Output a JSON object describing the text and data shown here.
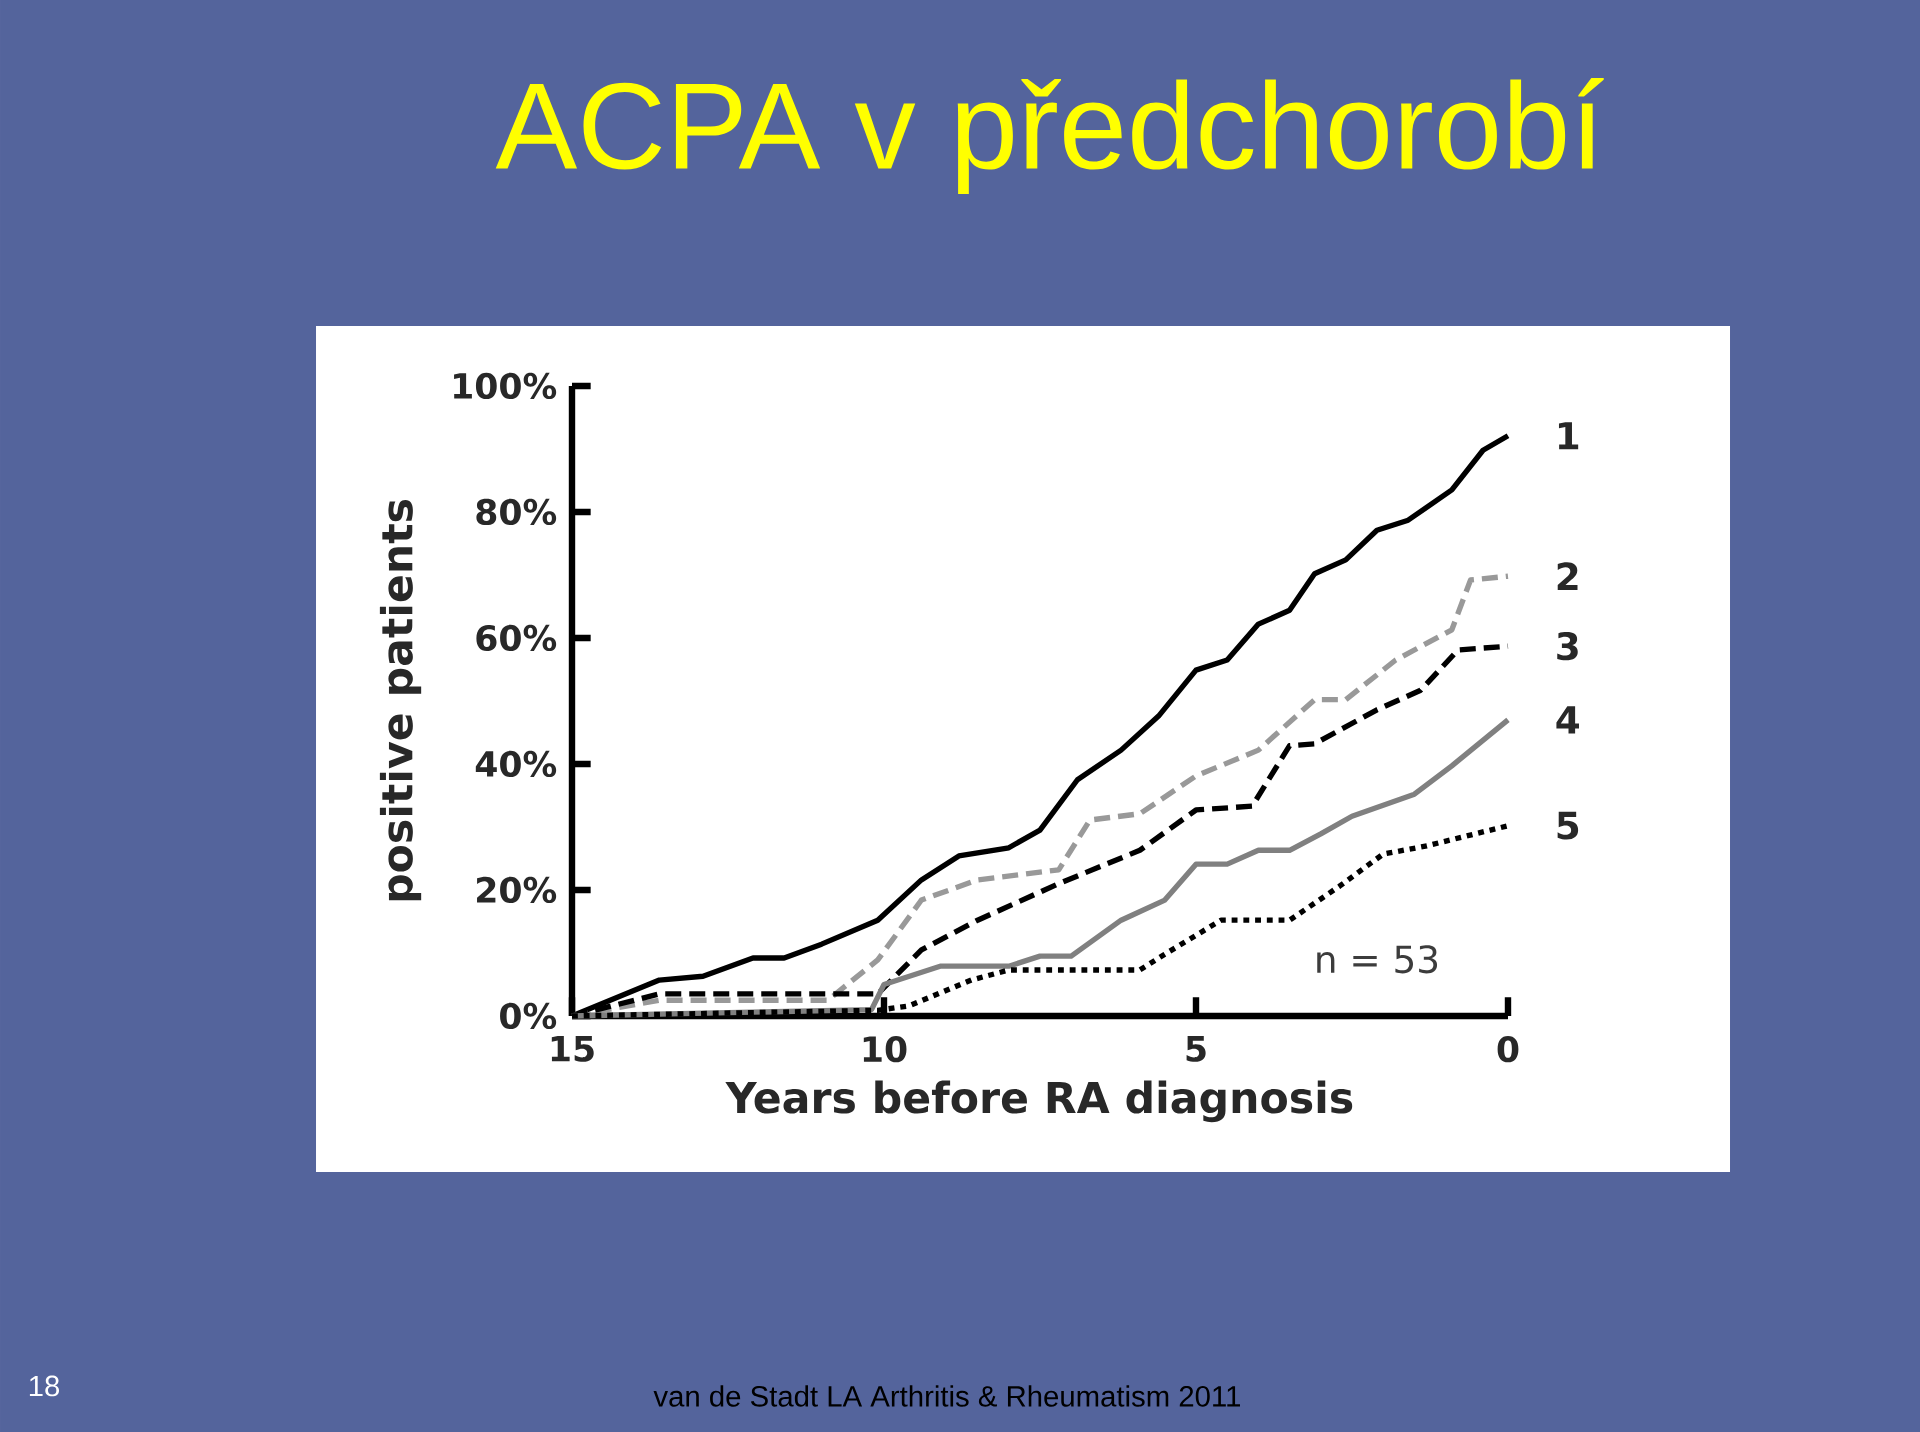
{
  "chart_data": {
    "type": "line",
    "title": "ACPA v předchorobí",
    "xlabel": "Years before RA diagnosis",
    "ylabel": "positive patients",
    "xlim": [
      15,
      0
    ],
    "xticks": [
      15,
      10,
      5,
      0
    ],
    "ylim": [
      0,
      100
    ],
    "yticks": [
      {
        "value": 0,
        "label": "0%"
      },
      {
        "value": 20,
        "label": "20%"
      },
      {
        "value": 40,
        "label": "40%"
      },
      {
        "value": 60,
        "label": "60%"
      },
      {
        "value": 80,
        "label": "80%"
      },
      {
        "value": 100,
        "label": "100%"
      }
    ],
    "grid": false,
    "legend": false,
    "annotations": [
      "n = 53",
      "van de Stadt LA Arthritis & Rheumatism 2011",
      "18"
    ],
    "series": [
      {
        "name": "1",
        "color": "#000000",
        "line_style": "solid",
        "x": [
          15,
          13.6,
          12.9,
          12.1,
          11.6,
          11.0,
          10.1,
          9.4,
          8.8,
          8.0,
          7.5,
          6.9,
          6.2,
          5.6,
          5.0,
          4.5,
          4.0,
          3.5,
          3.1,
          2.6,
          2.1,
          1.6,
          0.9,
          0.4,
          0
        ],
        "values": [
          0,
          5.7,
          6.3,
          9.2,
          9.2,
          11.4,
          15.2,
          21.6,
          25.4,
          26.7,
          29.5,
          37.5,
          42.2,
          47.6,
          54.9,
          56.5,
          62.2,
          64.4,
          70.2,
          72.4,
          77.1,
          78.7,
          83.5,
          89.8,
          92.1
        ]
      },
      {
        "name": "2",
        "color": "#999999",
        "line_style": "dashed",
        "x": [
          15,
          13.6,
          10.9,
          10.1,
          9.4,
          8.5,
          7.2,
          6.7,
          5.9,
          5.0,
          4.0,
          3.1,
          2.6,
          1.8,
          0.9,
          0.6,
          0
        ],
        "values": [
          0,
          2.5,
          2.5,
          8.9,
          18.4,
          21.6,
          23.2,
          31.1,
          32.1,
          38.1,
          42.2,
          50.2,
          50.2,
          56.5,
          61.3,
          69.2,
          69.8
        ]
      },
      {
        "name": "3",
        "color": "#000000",
        "line_style": "dashed",
        "x": [
          15,
          13.6,
          10.1,
          9.4,
          8.5,
          7.2,
          5.9,
          5.0,
          4.1,
          3.5,
          3.1,
          2.1,
          1.4,
          0.8,
          0
        ],
        "values": [
          0,
          3.5,
          3.5,
          10.5,
          15.2,
          21.0,
          26.3,
          32.7,
          33.3,
          42.9,
          43.2,
          48.6,
          51.7,
          58.1,
          58.7
        ]
      },
      {
        "name": "4",
        "color": "#808080",
        "line_style": "solid",
        "x": [
          15,
          10.2,
          10.0,
          9.1,
          8.0,
          7.5,
          7.0,
          6.2,
          5.5,
          5.0,
          4.5,
          4.0,
          3.5,
          3.0,
          2.5,
          1.5,
          0.9,
          0
        ],
        "values": [
          0,
          1.0,
          5.0,
          7.9,
          7.9,
          9.5,
          9.5,
          15.2,
          18.4,
          24.1,
          24.1,
          26.3,
          26.3,
          28.9,
          31.7,
          35.2,
          39.7,
          47.0
        ]
      },
      {
        "name": "5",
        "color": "#000000",
        "line_style": "dotted",
        "x": [
          15,
          10.1,
          9.6,
          8.6,
          8.0,
          5.9,
          5.5,
          4.6,
          3.5,
          2.7,
          2.0,
          1.3,
          0
        ],
        "values": [
          0,
          0.9,
          1.6,
          5.7,
          7.3,
          7.3,
          9.8,
          15.2,
          15.2,
          20.6,
          25.7,
          27.0,
          30.2
        ]
      }
    ]
  }
}
